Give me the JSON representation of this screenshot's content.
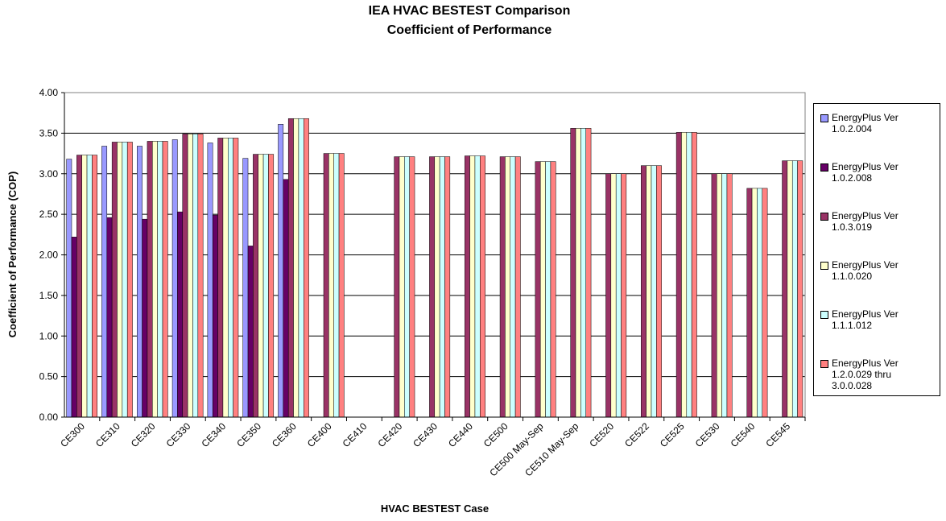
{
  "chart_data": {
    "type": "bar",
    "title": "IEA HVAC BESTEST Comparison",
    "subtitle": "Coefficient of Performance",
    "x_label": "HVAC BESTEST Case",
    "y_label": "Coefficient of Performance (COP)",
    "categories": [
      "CE300",
      "CE310",
      "CE320",
      "CE330",
      "CE340",
      "CE350",
      "CE360",
      "CE400",
      "CE410",
      "CE420",
      "CE430",
      "CE440",
      "CE500",
      "CE500 May-Sep",
      "CE510 May-Sep",
      "CE520",
      "CE522",
      "CE525",
      "CE530",
      "CE540",
      "CE545"
    ],
    "series": [
      {
        "name": "EnergyPlus Ver 1.0.2.004",
        "color": "#9999ff",
        "values": [
          3.18,
          3.34,
          3.34,
          3.42,
          3.38,
          3.19,
          3.61,
          null,
          null,
          null,
          null,
          null,
          null,
          null,
          null,
          null,
          null,
          null,
          null,
          null,
          null
        ]
      },
      {
        "name": "EnergyPlus Ver 1.0.2.008",
        "color": "#660066",
        "values": [
          2.22,
          2.46,
          2.44,
          2.53,
          2.49,
          2.11,
          2.93,
          null,
          null,
          null,
          null,
          null,
          null,
          null,
          null,
          null,
          null,
          null,
          null,
          null,
          null
        ]
      },
      {
        "name": "EnergyPlus Ver 1.0.3.019",
        "color": "#993366",
        "values": [
          3.23,
          3.39,
          3.4,
          3.49,
          3.44,
          3.24,
          3.68,
          3.25,
          null,
          3.21,
          3.21,
          3.22,
          3.21,
          3.15,
          3.56,
          3.0,
          3.1,
          3.51,
          3.0,
          2.82,
          3.16
        ]
      },
      {
        "name": "EnergyPlus Ver 1.1.0.020",
        "color": "#ffffcc",
        "values": [
          3.23,
          3.39,
          3.4,
          3.49,
          3.44,
          3.24,
          3.68,
          3.25,
          null,
          3.21,
          3.21,
          3.22,
          3.21,
          3.15,
          3.56,
          3.0,
          3.1,
          3.51,
          3.0,
          2.82,
          3.16
        ]
      },
      {
        "name": "EnergyPlus Ver 1.1.1.012",
        "color": "#ccffff",
        "values": [
          3.23,
          3.39,
          3.4,
          3.49,
          3.44,
          3.24,
          3.68,
          3.25,
          null,
          3.21,
          3.21,
          3.22,
          3.21,
          3.15,
          3.56,
          3.0,
          3.1,
          3.51,
          3.0,
          2.82,
          3.16
        ]
      },
      {
        "name": "EnergyPlus Ver 1.2.0.029 thru 3.0.0.028",
        "color": "#ff8080",
        "values": [
          3.23,
          3.39,
          3.4,
          3.49,
          3.44,
          3.24,
          3.68,
          3.25,
          null,
          3.21,
          3.21,
          3.22,
          3.21,
          3.15,
          3.56,
          3.0,
          3.1,
          3.51,
          3.0,
          2.82,
          3.16
        ]
      }
    ],
    "ylim": [
      0,
      4
    ],
    "yticks": [
      {
        "value": 0,
        "label": "0.00"
      },
      {
        "value": 0.5,
        "label": "0.50"
      },
      {
        "value": 1,
        "label": "1.00"
      },
      {
        "value": 1.5,
        "label": "1.50"
      },
      {
        "value": 2,
        "label": "2.00"
      },
      {
        "value": 2.5,
        "label": "2.50"
      },
      {
        "value": 3,
        "label": "3.00"
      },
      {
        "value": 3.5,
        "label": "3.50"
      },
      {
        "value": 4,
        "label": "4.00"
      }
    ],
    "grid": true,
    "legend": "right"
  }
}
